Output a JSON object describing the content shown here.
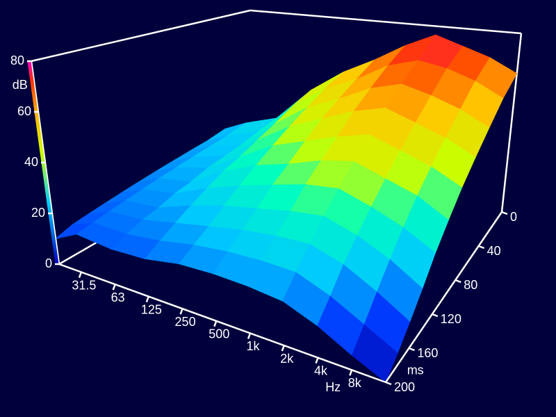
{
  "chart_data": {
    "type": "surface",
    "zlabel": "dB",
    "xlabel": "Hz",
    "ylabel": "ms",
    "xscale": "log",
    "xlim": [
      20,
      16000
    ],
    "ylim": [
      0,
      200
    ],
    "zlim": [
      0,
      80
    ],
    "xticks": [
      31.5,
      63,
      125,
      250,
      500,
      {
        "value": 1000,
        "label": "1k"
      },
      {
        "value": 2000,
        "label": "2k"
      },
      {
        "value": 4000,
        "label": "4k"
      },
      {
        "value": 8000,
        "label": "8k"
      }
    ],
    "yticks": [
      0,
      40,
      80,
      120,
      160,
      200
    ],
    "zticks": [
      0,
      20,
      40,
      60,
      80
    ],
    "x": [
      20,
      31.5,
      63,
      125,
      250,
      500,
      1000,
      2000,
      4000,
      8000,
      16000
    ],
    "y": [
      0,
      20,
      40,
      60,
      80,
      100,
      120,
      140,
      160,
      180,
      200
    ],
    "values": [
      [
        22,
        26,
        30,
        45,
        55,
        62,
        70,
        76,
        72,
        68,
        62
      ],
      [
        20,
        24,
        28,
        42,
        52,
        58,
        66,
        70,
        68,
        64,
        58
      ],
      [
        19,
        23,
        26,
        38,
        48,
        54,
        61,
        65,
        62,
        58,
        52
      ],
      [
        18,
        22,
        25,
        35,
        44,
        50,
        56,
        60,
        56,
        52,
        46
      ],
      [
        17,
        21,
        24,
        32,
        40,
        45,
        50,
        54,
        50,
        46,
        40
      ],
      [
        16,
        20,
        22,
        30,
        36,
        40,
        45,
        48,
        44,
        40,
        33
      ],
      [
        15,
        19,
        21,
        27,
        32,
        36,
        40,
        42,
        38,
        33,
        26
      ],
      [
        14,
        18,
        19,
        24,
        28,
        31,
        34,
        36,
        32,
        26,
        18
      ],
      [
        13,
        17,
        18,
        21,
        24,
        27,
        29,
        30,
        26,
        19,
        11
      ],
      [
        12,
        16,
        16,
        18,
        21,
        23,
        24,
        24,
        19,
        12,
        5
      ],
      [
        10,
        15,
        14,
        15,
        18,
        19,
        19,
        18,
        13,
        6,
        0
      ]
    ]
  }
}
